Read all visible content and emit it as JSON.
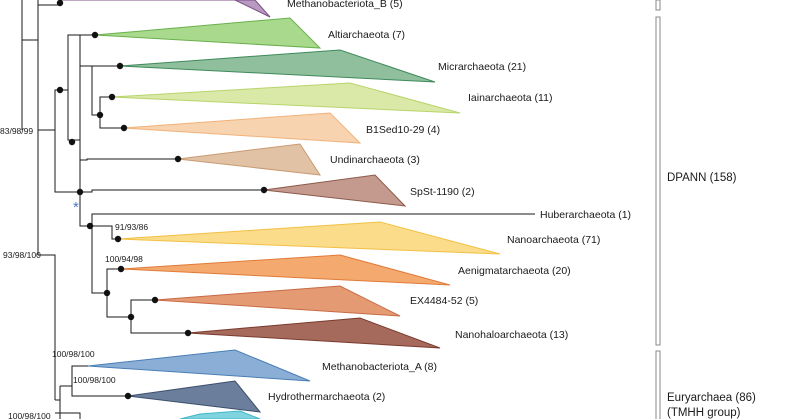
{
  "clades": {
    "methanobacteriota_b": {
      "label": "Methanobacteriota_B (5)",
      "color": "#7b4f86"
    },
    "altiarchaeota": {
      "label": "Altiarchaeota (7)",
      "color": "#6ab04c"
    },
    "micrarchaeota": {
      "label": "Micrarchaeota (21)",
      "color": "#3f8a5c"
    },
    "iainarchaeota": {
      "label": "Iainarchaeota (11)",
      "color": "#b8d46a"
    },
    "b1sed10_29": {
      "label": "B1Sed10-29 (4)",
      "color": "#f0b27a"
    },
    "undinarchaeota": {
      "label": "Undinarchaeota (3)",
      "color": "#c99a72"
    },
    "spst_1190": {
      "label": "SpSt-1190 (2)",
      "color": "#8d5a4a"
    },
    "huberarchaeota": {
      "label": "Huberarchaeota (1)",
      "color": "#8a4a4a"
    },
    "nanoarchaeota": {
      "label": "Nanoarchaeota (71)",
      "color": "#f2c044"
    },
    "aenigmatarchaeota": {
      "label": "Aenigmatarchaeota (20)",
      "color": "#e07b39"
    },
    "ex4484_52": {
      "label": "EX4484-52 (5)",
      "color": "#c96a45"
    },
    "nanohaloarchaeota": {
      "label": "Nanohaloarchaeota (13)",
      "color": "#7a3b2e"
    },
    "methanobacteriota_a": {
      "label": "Methanobacteriota_A (8)",
      "color": "#4a7eb5"
    },
    "hydrothermarchaeota": {
      "label": "Hydrothermarchaeota (2)",
      "color": "#3b4f6b"
    },
    "bottom_partial": {
      "color": "#3fb8c9"
    }
  },
  "support_values": {
    "s1": "83/98/99",
    "s2": "93/98/100",
    "s3": "91/93/86",
    "s4": "100/94/98",
    "s5": "100/98/100",
    "s6": "100/98/100",
    "s7": "100/98/100"
  },
  "marker": {
    "asterisk": "*",
    "color": "#4a7cc7"
  },
  "groups": {
    "dpann": "DPANN (158)",
    "euryarchaea_line1": "Euryarchaea (86)",
    "euryarchaea_line2": "(TMHH group)"
  }
}
